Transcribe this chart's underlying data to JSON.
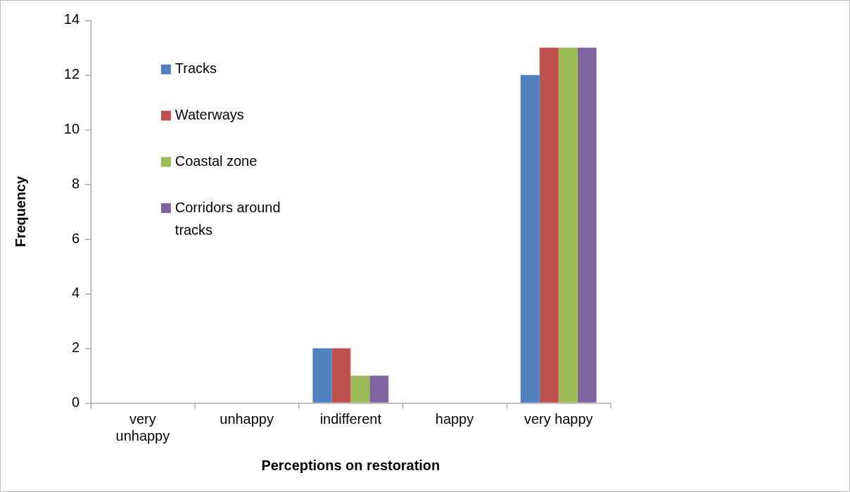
{
  "chart_data": {
    "type": "bar",
    "xlabel": "Perceptions on restoration",
    "ylabel": "Frequency",
    "categories": [
      "very unhappy",
      "unhappy",
      "indifferent",
      "happy",
      "very happy"
    ],
    "series": [
      {
        "name": "Tracks",
        "color": "#4f81bd",
        "values": [
          0,
          0,
          2,
          0,
          12
        ]
      },
      {
        "name": "Waterways",
        "color": "#c0504d",
        "values": [
          0,
          0,
          2,
          0,
          13
        ]
      },
      {
        "name": "Coastal zone",
        "color": "#9bbb59",
        "values": [
          0,
          0,
          1,
          0,
          13
        ]
      },
      {
        "name": "Corridors around tracks",
        "color": "#8064a2",
        "values": [
          0,
          0,
          1,
          0,
          13
        ]
      }
    ],
    "ylim": [
      0,
      14
    ],
    "yticks": [
      0,
      2,
      4,
      6,
      8,
      10,
      12,
      14
    ],
    "grid": false,
    "legend": "top left"
  }
}
